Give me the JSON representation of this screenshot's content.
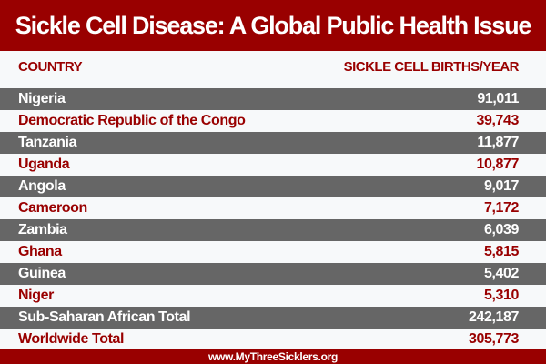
{
  "title": "Sickle Cell Disease: A Global Public Health Issue",
  "columns": {
    "country": "COUNTRY",
    "births": "SICKLE CELL BIRTHS/YEAR"
  },
  "rows": [
    {
      "country": "Nigeria",
      "births": "91,011"
    },
    {
      "country": "Democratic Republic of the Congo",
      "births": "39,743"
    },
    {
      "country": "Tanzania",
      "births": "11,877"
    },
    {
      "country": "Uganda",
      "births": "10,877"
    },
    {
      "country": "Angola",
      "births": "9,017"
    },
    {
      "country": "Cameroon",
      "births": "7,172"
    },
    {
      "country": "Zambia",
      "births": "6,039"
    },
    {
      "country": "Ghana",
      "births": "5,815"
    },
    {
      "country": "Guinea",
      "births": "5,402"
    },
    {
      "country": "Niger",
      "births": "5,310"
    },
    {
      "country": "Sub-Saharan African Total",
      "births": "242,187"
    },
    {
      "country": "Worldwide Total",
      "births": "305,773"
    }
  ],
  "footer": "www.MyThreeSicklers.org",
  "colors": {
    "brand": "#990000",
    "dark_row": "#666666",
    "light_row": "#f7f9fa"
  }
}
